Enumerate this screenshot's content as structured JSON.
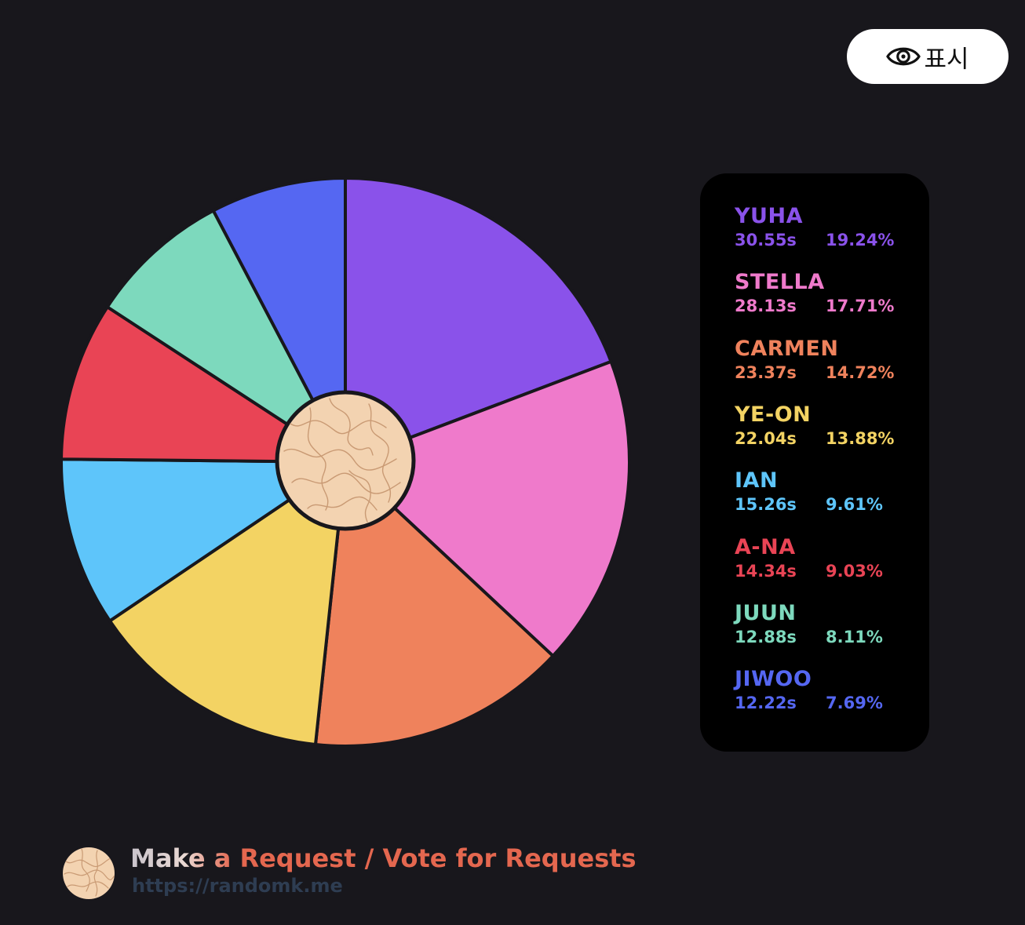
{
  "show_button": {
    "label": "표시",
    "icon": "eye-icon"
  },
  "chart_data": {
    "type": "pie",
    "title": "",
    "start_angle_deg": 0,
    "direction": "clockwise",
    "center_badge": "textured-circle",
    "slices": [
      {
        "name": "YUHA",
        "seconds": "30.55s",
        "percent": "19.24%",
        "value": 19.24,
        "color": "#8a52ea"
      },
      {
        "name": "STELLA",
        "seconds": "28.13s",
        "percent": "17.71%",
        "value": 17.71,
        "color": "#ef7acb"
      },
      {
        "name": "CARMEN",
        "seconds": "23.37s",
        "percent": "14.72%",
        "value": 14.72,
        "color": "#ef825c"
      },
      {
        "name": "YE-ON",
        "seconds": "22.04s",
        "percent": "13.88%",
        "value": 13.88,
        "color": "#f3d363"
      },
      {
        "name": "IAN",
        "seconds": "15.26s",
        "percent": "9.61%",
        "value": 9.61,
        "color": "#5ec5fa"
      },
      {
        "name": "A-NA",
        "seconds": "14.34s",
        "percent": "9.03%",
        "value": 9.03,
        "color": "#e94455"
      },
      {
        "name": "JUUN",
        "seconds": "12.88s",
        "percent": "8.11%",
        "value": 8.11,
        "color": "#7dd9bd"
      },
      {
        "name": "JIWOO",
        "seconds": "12.22s",
        "percent": "7.69%",
        "value": 7.69,
        "color": "#5567f2"
      }
    ]
  },
  "footer": {
    "title": "Make a Request / Vote for Requests",
    "url": "https://randomk.me"
  }
}
